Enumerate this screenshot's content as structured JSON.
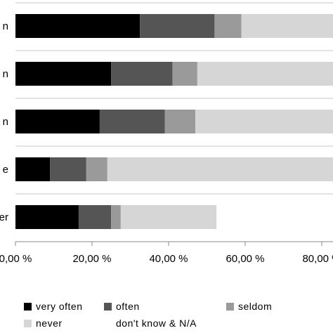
{
  "chart_data": {
    "type": "bar",
    "orientation": "horizontal",
    "stacked": true,
    "categories": [
      "n",
      "n",
      "n",
      "e",
      "er"
    ],
    "series": [
      {
        "name": "very often",
        "color": "#000000",
        "values": [
          32.5,
          25.0,
          22.0,
          9.0,
          16.5
        ]
      },
      {
        "name": "often",
        "color": "#555555",
        "values": [
          19.5,
          16.0,
          17.0,
          9.5,
          8.5
        ]
      },
      {
        "name": "seldom",
        "color": "#9a9a9a",
        "values": [
          7.0,
          6.5,
          8.0,
          5.5,
          2.5
        ]
      },
      {
        "name": "never",
        "color": "#d6d6d6",
        "values": [
          40.0,
          52.0,
          52.0,
          75.0,
          25.0
        ]
      },
      {
        "name": "don't know & N/A",
        "color": "#ffffff",
        "values": [
          0,
          0,
          0,
          0,
          0
        ]
      }
    ],
    "xticks": [
      "0,00 %",
      "20,00 %",
      "40,00 %",
      "60,00 %",
      "80,00 %"
    ],
    "xtick_values": [
      0,
      20,
      40,
      60,
      80
    ],
    "xlim": [
      0,
      100
    ],
    "grid": true,
    "legend_position": "bottom"
  }
}
